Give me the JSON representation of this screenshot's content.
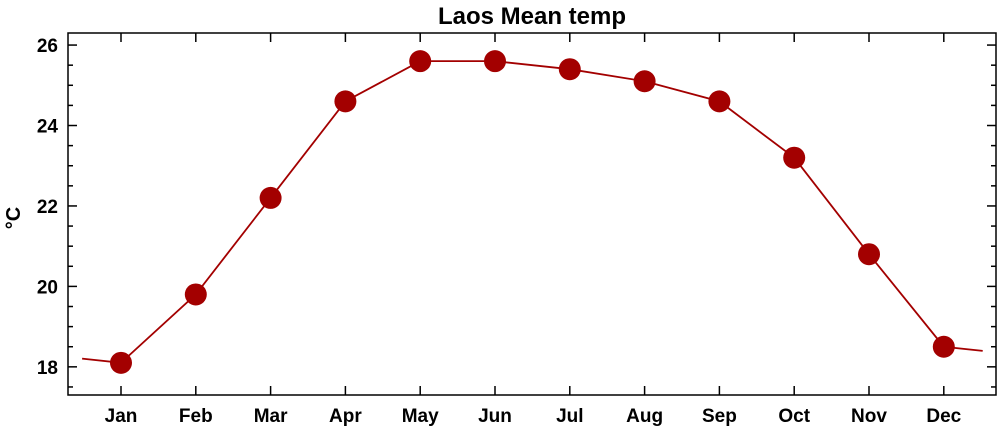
{
  "chart_data": {
    "type": "line",
    "title": "Laos Mean temp",
    "ylabel": "°C",
    "xlabel": "",
    "categories": [
      "Jan",
      "Feb",
      "Mar",
      "Apr",
      "May",
      "Jun",
      "Jul",
      "Aug",
      "Sep",
      "Oct",
      "Nov",
      "Dec"
    ],
    "series": [
      {
        "values": [
          18.1,
          19.8,
          22.2,
          24.6,
          25.6,
          25.6,
          25.4,
          25.1,
          24.6,
          23.2,
          20.8,
          18.5
        ]
      }
    ],
    "yticks": [
      18,
      20,
      22,
      24,
      26
    ],
    "ylim": [
      17.3,
      26.3
    ],
    "grid": false,
    "legend": "none",
    "colors": {
      "series": "#a30000",
      "line": "#a30000",
      "axis": "#000000"
    }
  }
}
